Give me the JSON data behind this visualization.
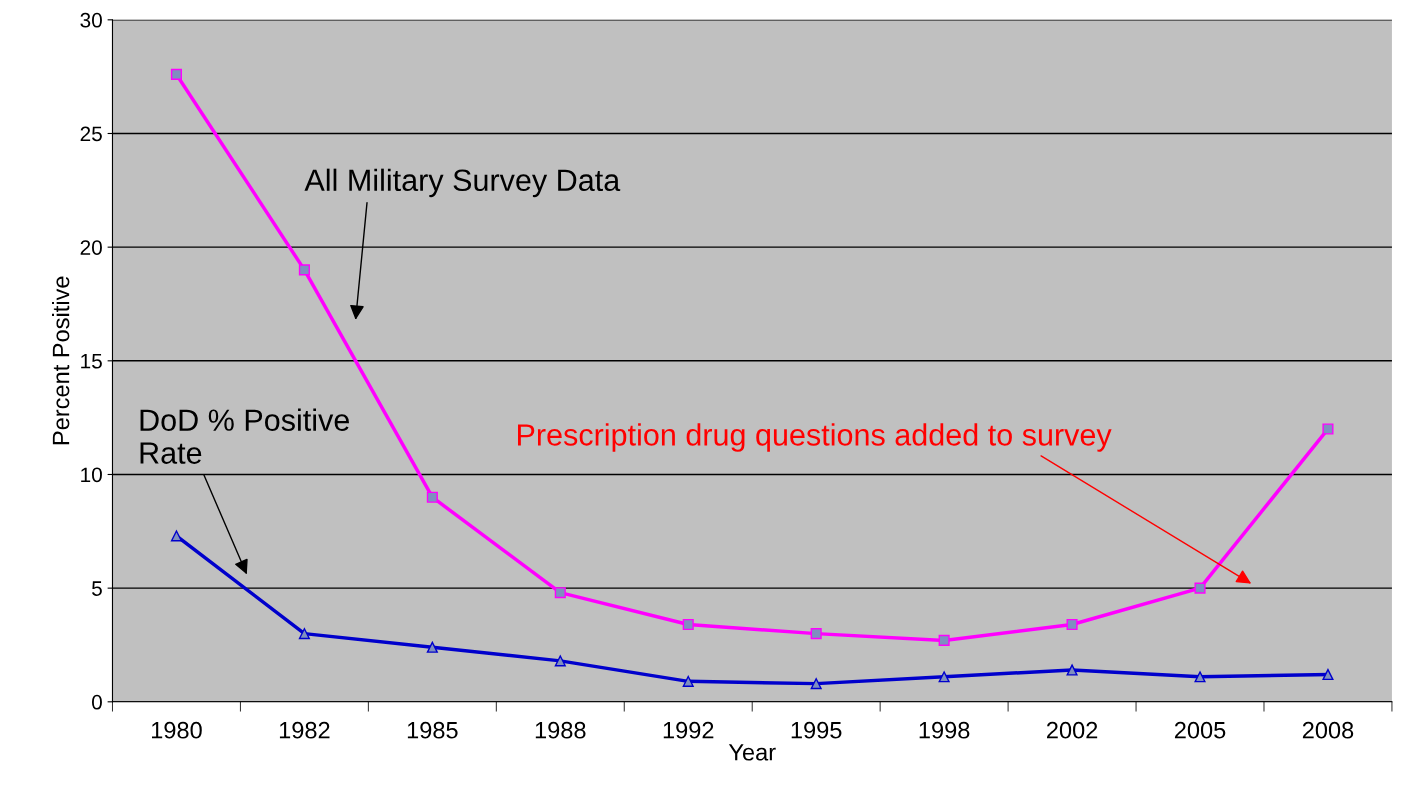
{
  "chart_data": {
    "type": "line",
    "xlabel": "Year",
    "ylabel": "Percent Positive",
    "categories": [
      "1980",
      "1982",
      "1985",
      "1988",
      "1992",
      "1995",
      "1998",
      "2002",
      "2005",
      "2008"
    ],
    "series": [
      {
        "color": "#ff00ff",
        "marker": "square",
        "values": [
          27.6,
          19.0,
          9.0,
          4.8,
          3.4,
          3.0,
          2.7,
          3.4,
          5.0,
          12.0
        ]
      },
      {
        "color": "#0000cc",
        "marker": "triangle",
        "values": [
          7.3,
          3.0,
          2.4,
          1.8,
          0.9,
          0.8,
          1.1,
          1.4,
          1.1,
          1.2
        ]
      }
    ],
    "annotations": [
      "All Military Survey Data",
      "DoD % Positive\nRate",
      "Prescription drug questions added to survey"
    ],
    "ylim": [
      0,
      30
    ],
    "yticks": [
      0,
      5,
      10,
      15,
      20,
      25,
      30
    ],
    "grid": "y",
    "line_style": "solid"
  }
}
